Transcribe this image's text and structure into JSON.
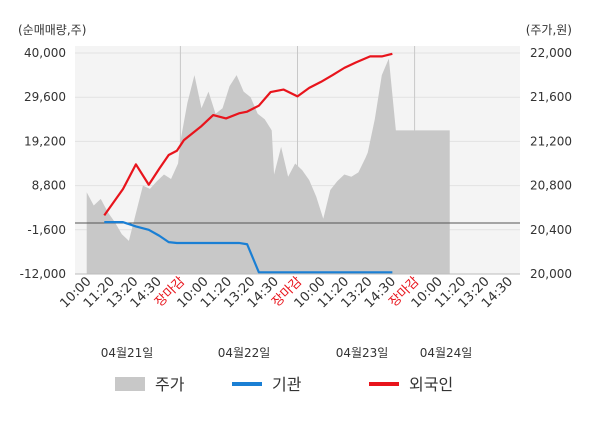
{
  "chart_data": {
    "type": "line",
    "title": "",
    "left_axis": {
      "unit_label": "(순매매량,주)",
      "ticks": [
        "40,000",
        "29,600",
        "19,200",
        "8,800",
        "-1,600",
        "-12,000"
      ],
      "tick_values": [
        40000,
        29600,
        19200,
        8800,
        -1600,
        -12000
      ],
      "range": [
        -12000,
        40000
      ]
    },
    "right_axis": {
      "unit_label": "(주가,원)",
      "ticks": [
        "22,000",
        "21,600",
        "21,200",
        "20,800",
        "20,400",
        "20,000"
      ],
      "tick_values": [
        22000,
        21600,
        21200,
        20800,
        20400,
        20000
      ],
      "range": [
        20000,
        22000
      ]
    },
    "x_tick_labels": [
      {
        "text": "10:00",
        "color": "#333333"
      },
      {
        "text": "11:20",
        "color": "#333333"
      },
      {
        "text": "13:20",
        "color": "#333333"
      },
      {
        "text": "14:30",
        "color": "#333333"
      },
      {
        "text": "장마감",
        "color": "#e8141c"
      },
      {
        "text": "10:00",
        "color": "#333333"
      },
      {
        "text": "11:20",
        "color": "#333333"
      },
      {
        "text": "13:20",
        "color": "#333333"
      },
      {
        "text": "14:30",
        "color": "#333333"
      },
      {
        "text": "장마감",
        "color": "#e8141c"
      },
      {
        "text": "10:00",
        "color": "#333333"
      },
      {
        "text": "11:20",
        "color": "#333333"
      },
      {
        "text": "13:20",
        "color": "#333333"
      },
      {
        "text": "14:30",
        "color": "#333333"
      },
      {
        "text": "장마감",
        "color": "#e8141c"
      },
      {
        "text": "10:00",
        "color": "#333333"
      },
      {
        "text": "11:20",
        "color": "#333333"
      },
      {
        "text": "13:20",
        "color": "#333333"
      },
      {
        "text": "14:30",
        "color": "#333333"
      }
    ],
    "day_labels": [
      "04월21일",
      "04월22일",
      "04월23일",
      "04월24일"
    ],
    "series": [
      {
        "name": "주가",
        "kind": "area",
        "axis": "right",
        "color": "#c8c8c8",
        "x": [
          0.0,
          0.3,
          0.6,
          0.9,
          1.2,
          1.5,
          1.8,
          2.1,
          2.4,
          2.7,
          3.0,
          3.3,
          3.6,
          3.9,
          4.0,
          4.3,
          4.6,
          4.9,
          5.2,
          5.5,
          5.8,
          6.1,
          6.4,
          6.7,
          7.0,
          7.3,
          7.6,
          7.9,
          8.0,
          8.3,
          8.6,
          8.9,
          9.2,
          9.5,
          9.8,
          10.1,
          10.4,
          10.7,
          11.0,
          11.3,
          11.6,
          11.9,
          12.0,
          12.3,
          12.6,
          12.9,
          13.2,
          13.5,
          13.8,
          14.1,
          14.4,
          14.7,
          15.0,
          15.3,
          15.5
        ],
        "values": [
          20740,
          20620,
          20680,
          20560,
          20470,
          20360,
          20300,
          20550,
          20800,
          20770,
          20840,
          20900,
          20860,
          21000,
          21200,
          21550,
          21800,
          21500,
          21650,
          21450,
          21500,
          21700,
          21800,
          21650,
          21600,
          21450,
          21400,
          21300,
          20900,
          21150,
          20880,
          21000,
          20940,
          20850,
          20700,
          20500,
          20760,
          20840,
          20900,
          20880,
          20920,
          21050,
          21100,
          21400,
          21800,
          21950,
          21300,
          21300,
          21300,
          21300,
          21300,
          21300,
          21300,
          21300,
          21300
        ]
      },
      {
        "name": "기관",
        "kind": "line",
        "axis": "left",
        "color": "#1a7fd4",
        "x": [
          0.75,
          1.55,
          2.1,
          2.65,
          3.1,
          3.5,
          3.85,
          4.15,
          4.9,
          5.4,
          5.95,
          6.5,
          6.85,
          7.35,
          7.85,
          8.4,
          9.0,
          9.5,
          10.0,
          10.5,
          11.0,
          11.5,
          12.1,
          12.6,
          13.05
        ],
        "values": [
          200,
          200,
          -800,
          -1600,
          -3000,
          -4500,
          -4700,
          -4700,
          -4700,
          -4700,
          -4700,
          -4700,
          -5000,
          -11600,
          -11600,
          -11600,
          -11600,
          -11600,
          -11600,
          -11600,
          -11600,
          -11600,
          -11600,
          -11600,
          -11600
        ]
      },
      {
        "name": "외국인",
        "kind": "line",
        "axis": "left",
        "color": "#e8141c",
        "x": [
          0.75,
          1.55,
          2.1,
          2.65,
          3.1,
          3.5,
          3.85,
          4.15,
          4.9,
          5.4,
          5.95,
          6.5,
          6.85,
          7.35,
          7.85,
          8.4,
          9.0,
          9.5,
          10.0,
          10.5,
          11.0,
          11.5,
          12.1,
          12.6,
          13.05
        ],
        "values": [
          1800,
          8000,
          13800,
          9000,
          12800,
          16000,
          17000,
          19500,
          22800,
          25400,
          24600,
          25800,
          26200,
          27600,
          30800,
          31400,
          29800,
          31800,
          33200,
          34800,
          36500,
          37800,
          39200,
          39200,
          39800
        ]
      }
    ],
    "legend": {
      "position": "bottom",
      "items": [
        {
          "label": "주가",
          "color": "#c8c8c8",
          "kind": "area"
        },
        {
          "label": "기관",
          "color": "#1a7fd4",
          "kind": "line"
        },
        {
          "label": "외국인",
          "color": "#e8141c",
          "kind": "line"
        }
      ]
    },
    "grid": true,
    "zero_line": true
  }
}
